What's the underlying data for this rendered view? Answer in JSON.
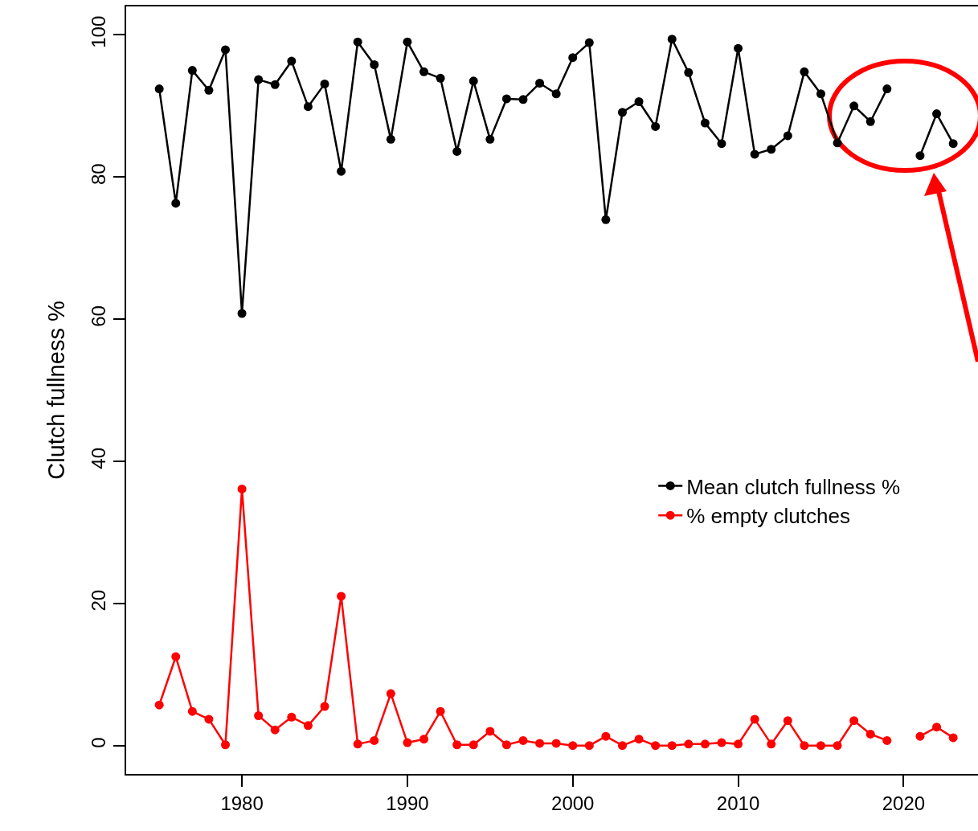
{
  "chart_data": {
    "type": "line",
    "ylabel": "Clutch fullness %",
    "x": [
      1975,
      1976,
      1977,
      1978,
      1979,
      1980,
      1981,
      1982,
      1983,
      1984,
      1985,
      1986,
      1987,
      1988,
      1989,
      1990,
      1991,
      1992,
      1993,
      1994,
      1995,
      1996,
      1997,
      1998,
      1999,
      2000,
      2001,
      2002,
      2003,
      2004,
      2005,
      2006,
      2007,
      2008,
      2009,
      2010,
      2011,
      2012,
      2013,
      2014,
      2015,
      2016,
      2017,
      2018,
      2019,
      2020,
      2021,
      2022,
      2023
    ],
    "series": [
      {
        "name": "Mean clutch fullness %",
        "color": "#000000",
        "values": [
          92.4,
          76.3,
          95.0,
          92.2,
          97.9,
          60.8,
          93.7,
          93.0,
          96.3,
          89.9,
          93.1,
          80.8,
          99.0,
          95.8,
          85.3,
          99.0,
          94.8,
          93.9,
          83.6,
          93.5,
          85.3,
          91.0,
          90.9,
          93.2,
          91.7,
          96.8,
          98.9,
          74.0,
          89.1,
          90.6,
          87.1,
          99.4,
          94.7,
          87.6,
          84.7,
          98.1,
          83.2,
          83.9,
          85.8,
          94.8,
          91.7,
          84.8,
          90.0,
          87.8,
          92.4,
          null,
          83.0,
          88.9,
          84.7
        ]
      },
      {
        "name": "% empty clutches",
        "color": "#ff0000",
        "values": [
          5.7,
          12.5,
          4.8,
          3.7,
          0.1,
          36.1,
          4.2,
          2.2,
          4.0,
          2.8,
          5.5,
          21.0,
          0.2,
          0.7,
          7.3,
          0.4,
          0.9,
          4.8,
          0.1,
          0.1,
          2.0,
          0.1,
          0.7,
          0.3,
          0.3,
          0.0,
          0.0,
          1.3,
          0.0,
          0.9,
          0.0,
          0.0,
          0.2,
          0.2,
          0.4,
          0.2,
          3.7,
          0.2,
          3.5,
          0.0,
          0.0,
          0.0,
          3.5,
          1.6,
          0.7,
          null,
          1.3,
          2.6,
          1.1
        ]
      }
    ],
    "xlim": [
      1973,
      2024.5
    ],
    "xticks": [
      1980,
      1990,
      2000,
      2010,
      2020
    ],
    "ylim": [
      -4,
      104
    ],
    "yticks": [
      0,
      20,
      40,
      60,
      80,
      100
    ],
    "grid": false,
    "legend": "right",
    "marker": "circle",
    "line_style": "solid"
  }
}
